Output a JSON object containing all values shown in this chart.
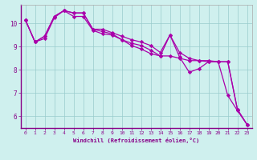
{
  "xlabel": "Windchill (Refroidissement éolien,°C)",
  "background_color": "#cff0ee",
  "line_color": "#aa00aa",
  "marker": "D",
  "markersize": 2.2,
  "linewidth": 0.9,
  "grid_color": "#99cccc",
  "xlim": [
    -0.5,
    23.5
  ],
  "ylim": [
    5.5,
    10.8
  ],
  "yticks": [
    6,
    7,
    8,
    9,
    10
  ],
  "xticks": [
    0,
    1,
    2,
    3,
    4,
    5,
    6,
    7,
    8,
    9,
    10,
    11,
    12,
    13,
    14,
    15,
    16,
    17,
    18,
    19,
    20,
    21,
    22,
    23
  ],
  "series": [
    [
      10.15,
      9.2,
      9.45,
      10.3,
      10.55,
      10.45,
      10.45,
      9.75,
      9.75,
      9.6,
      9.45,
      9.3,
      9.2,
      9.05,
      8.75,
      9.5,
      8.75,
      8.5,
      8.4,
      8.4,
      8.35,
      8.35,
      6.3,
      5.65
    ],
    [
      10.15,
      9.2,
      9.45,
      10.3,
      10.55,
      10.45,
      10.45,
      9.75,
      9.65,
      9.55,
      9.3,
      9.15,
      9.05,
      8.85,
      8.6,
      8.6,
      8.5,
      8.4,
      8.4,
      8.35,
      8.35,
      8.35,
      6.3,
      5.65
    ],
    [
      10.15,
      9.2,
      9.35,
      10.25,
      10.55,
      10.3,
      10.3,
      9.7,
      9.55,
      9.5,
      9.3,
      9.05,
      8.9,
      8.7,
      8.6,
      9.5,
      8.55,
      7.9,
      8.05,
      8.35,
      8.35,
      6.9,
      6.25,
      5.65
    ]
  ]
}
